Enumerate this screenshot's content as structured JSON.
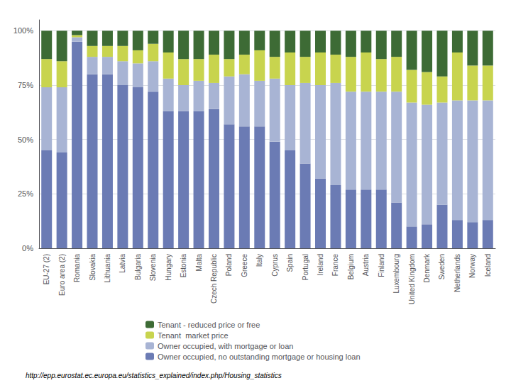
{
  "chart_data": {
    "type": "bar",
    "stacked": true,
    "categories": [
      "EU-27 (2)",
      "Euro area (2)",
      "Romania",
      "Slovakia",
      "Lithuania",
      "Latvia",
      "Bulgaria",
      "Slovenia",
      "Hungary",
      "Estonia",
      "Malta",
      "Czech Republic",
      "Poland",
      "Greece",
      "Italy",
      "Cyprus",
      "Spain",
      "Portugal",
      "Ireland",
      "France",
      "Belgium",
      "Austria",
      "Finland",
      "Luxembourg",
      "United Kingdom",
      "Denmark",
      "Sweden",
      "Netherlands",
      "Norway",
      "Iceland"
    ],
    "series": [
      {
        "name": "Owner occupied, no outstanding mortgage or housing loan",
        "color": "#6b7bb4",
        "values": [
          45,
          44,
          95,
          80,
          80,
          75,
          74,
          72,
          63,
          63,
          63,
          64,
          57,
          56,
          56,
          49,
          45,
          39,
          32,
          29,
          27,
          27,
          27,
          21,
          10,
          11,
          20,
          13,
          12,
          13
        ]
      },
      {
        "name": "Owner occupied, with mortgage or loan",
        "color": "#a8b4d4",
        "values": [
          29,
          30,
          2,
          8,
          8,
          11,
          11,
          14,
          15,
          12,
          14,
          12,
          22,
          24,
          21,
          29,
          30,
          37,
          43,
          47,
          45,
          45,
          45,
          51,
          57,
          55,
          47,
          55,
          56,
          55
        ]
      },
      {
        "name": "Tenant  market price",
        "color": "#c8d44e",
        "values": [
          13,
          12,
          1,
          5,
          5,
          7,
          6,
          8,
          12,
          12,
          10,
          13,
          8,
          9,
          14,
          10,
          15,
          12,
          15,
          13,
          16,
          18,
          15,
          16,
          15,
          15,
          12,
          22,
          16,
          16
        ]
      },
      {
        "name": "Tenant - reduced price or free",
        "color": "#3d6b35",
        "values": [
          13,
          14,
          2,
          7,
          7,
          7,
          9,
          6,
          10,
          13,
          13,
          11,
          13,
          11,
          9,
          12,
          10,
          12,
          10,
          11,
          12,
          10,
          13,
          12,
          18,
          19,
          21,
          10,
          16,
          16
        ]
      }
    ],
    "ylim": [
      0,
      105
    ],
    "yticks": [
      {
        "value": 0,
        "label": "0%"
      },
      {
        "value": 25,
        "label": "25%"
      },
      {
        "value": 50,
        "label": "50%"
      },
      {
        "value": 75,
        "label": "75%"
      },
      {
        "value": 100,
        "label": "100%"
      }
    ],
    "grid": true,
    "legend": "bottom",
    "annotations": [
      "http://epp.eurostat.ec.europa.eu/statistics_explained/index.php/Housing_statistics"
    ]
  }
}
